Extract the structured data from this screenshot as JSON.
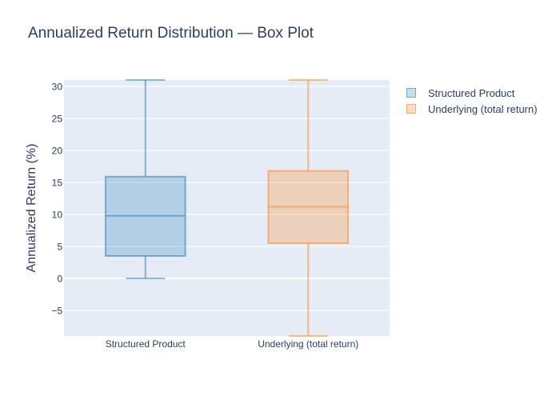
{
  "chart_data": {
    "type": "box",
    "title": "Annualized Return Distribution — Box Plot",
    "xlabel": "",
    "ylabel": "Annualized Return (%)",
    "ylim": [
      -9,
      31
    ],
    "yticks": [
      -5,
      0,
      5,
      10,
      15,
      20,
      25,
      30
    ],
    "ytick_labels": [
      "−5",
      "0",
      "5",
      "10",
      "15",
      "20",
      "25",
      "30"
    ],
    "grid": true,
    "legend_position": "top-right",
    "categories": [
      "Structured Product",
      "Underlying (total return)"
    ],
    "series": [
      {
        "name": "Structured Product",
        "category": "Structured Product",
        "color": "#1f77b4",
        "min": 0,
        "q1": 3.5,
        "median": 9.8,
        "q3": 15.9,
        "max": 31
      },
      {
        "name": "Underlying (total return)",
        "category": "Underlying (total return)",
        "color": "#ff7f0e",
        "min": -9,
        "q1": 5.5,
        "median": 11.2,
        "q3": 16.8,
        "max": 31
      }
    ]
  },
  "colors": {
    "plot_background": "#e5ecf6",
    "gridline": "#ffffff",
    "text": "#2a3f5f"
  }
}
